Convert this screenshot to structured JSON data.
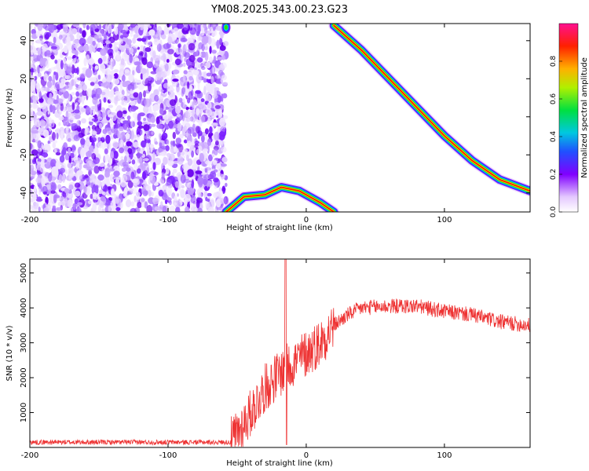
{
  "title": "YM08.2025.343.00.23.G23",
  "chart_data": [
    {
      "type": "heatmap",
      "xlabel": "Height of straight line (km)",
      "ylabel": "Frequency (Hz)",
      "xlim": [
        -200,
        162
      ],
      "ylim": [
        -50,
        49
      ],
      "x_ticks": [
        -200,
        -100,
        0,
        100
      ],
      "y_ticks": [
        -40,
        -20,
        0,
        20,
        40
      ],
      "colorbar": {
        "label": "Normalized spectral amplitude",
        "range": [
          0,
          1
        ],
        "ticks": [
          0.0,
          0.2,
          0.4,
          0.6,
          0.8
        ],
        "tick_labels": [
          "0.0",
          "0.2",
          "0.4",
          "0.6",
          "0.8"
        ]
      },
      "noise_region_x": [
        -200,
        -58
      ],
      "upper_ridge": {
        "x": [
          20,
          40,
          60,
          80,
          100,
          120,
          140,
          162
        ],
        "y": [
          48,
          35,
          20,
          5,
          -10,
          -23,
          -33,
          -39
        ]
      },
      "lower_ridge": {
        "x": [
          -58,
          -45,
          -30,
          -18,
          -5,
          10,
          20
        ],
        "y": [
          -50,
          -42,
          -41,
          -37,
          -39,
          -45,
          -50
        ]
      },
      "top_blob": {
        "x": -58,
        "y": 47
      }
    },
    {
      "type": "line",
      "xlabel": "Height of straight line (km)",
      "ylabel": "SNR (10 * v/v)",
      "xlim": [
        -200,
        162
      ],
      "ylim": [
        0,
        5400
      ],
      "x_ticks": [
        -200,
        -100,
        0,
        100
      ],
      "y_ticks": [
        1000,
        2000,
        3000,
        4000,
        5000
      ],
      "series_color": "#ee3333",
      "envelope": {
        "x": [
          -200,
          -100,
          -55,
          -50,
          -40,
          -30,
          -20,
          -10,
          0,
          10,
          20,
          30,
          40,
          60,
          80,
          100,
          120,
          140,
          162
        ],
        "y": [
          150,
          150,
          150,
          400,
          1000,
          1700,
          2100,
          2400,
          2700,
          3000,
          3500,
          3800,
          4000,
          4050,
          4050,
          3900,
          3800,
          3600,
          3500
        ]
      },
      "spike": {
        "x": -15,
        "y": 5400
      },
      "dip": {
        "x": -15,
        "y": 80
      }
    }
  ]
}
